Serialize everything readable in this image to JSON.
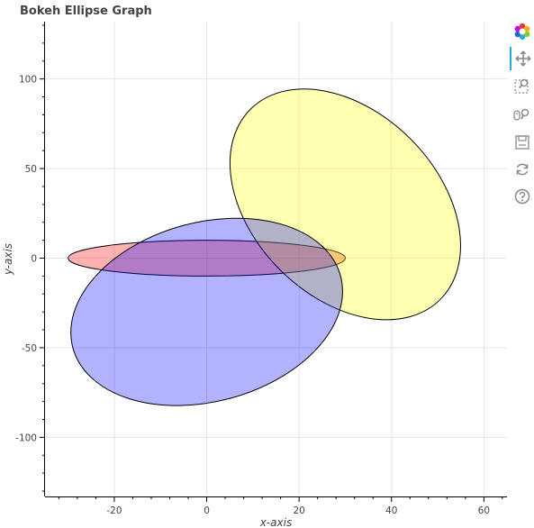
{
  "chart_data": {
    "type": "ellipse",
    "title": "Bokeh Ellipse Graph",
    "xlabel": "x-axis",
    "ylabel": "y-axis",
    "xlim": [
      -35,
      65
    ],
    "ylim": [
      -133,
      132
    ],
    "x_ticks": [
      -20,
      0,
      20,
      40,
      60
    ],
    "y_ticks": [
      -100,
      -50,
      0,
      50,
      100
    ],
    "grid": true,
    "ellipses": [
      {
        "x": 0,
        "y": 0,
        "width": 60,
        "height": 20,
        "angle_deg": 0,
        "fill": "#ff0000",
        "alpha": 0.3,
        "line": "#000000"
      },
      {
        "x": 30,
        "y": 30,
        "width": 40,
        "height": 150,
        "angle_deg": -45,
        "fill": "#ffff00",
        "alpha": 0.3,
        "line": "#000000"
      },
      {
        "x": 0,
        "y": -30,
        "width": 60,
        "height": 100,
        "angle_deg": -15,
        "fill": "#0000ff",
        "alpha": 0.3,
        "line": "#000000"
      }
    ]
  },
  "toolbar": {
    "tools": [
      {
        "name": "bokeh-logo-icon",
        "active": false
      },
      {
        "name": "pan-tool-icon",
        "active": true
      },
      {
        "name": "box-zoom-tool-icon",
        "active": false
      },
      {
        "name": "wheel-zoom-tool-icon",
        "active": false
      },
      {
        "name": "save-tool-icon",
        "active": false
      },
      {
        "name": "reset-tool-icon",
        "active": false
      },
      {
        "name": "help-tool-icon",
        "active": false
      }
    ]
  }
}
